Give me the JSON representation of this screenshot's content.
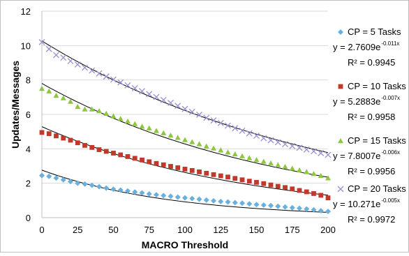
{
  "chart_data": {
    "type": "scatter",
    "xlabel": "MACRO Threshold",
    "ylabel": "Updates/Messages",
    "xlim": [
      0,
      200
    ],
    "ylim": [
      0,
      12
    ],
    "x_ticks": [
      "0",
      "25",
      "50",
      "75",
      "100",
      "125",
      "150",
      "175",
      "200"
    ],
    "y_ticks": [
      "0",
      "2",
      "4",
      "6",
      "8",
      "10",
      "12"
    ],
    "grid": "horizontal",
    "legend_position": "right",
    "x": [
      0,
      5,
      10,
      15,
      20,
      25,
      30,
      35,
      40,
      45,
      50,
      55,
      60,
      65,
      70,
      75,
      80,
      85,
      90,
      95,
      100,
      105,
      110,
      115,
      120,
      125,
      130,
      135,
      140,
      145,
      150,
      155,
      160,
      165,
      170,
      175,
      180,
      185,
      190,
      195,
      200
    ],
    "series": [
      {
        "name": "CP = 5 Tasks",
        "marker": "diamond",
        "color": "#6ab0de",
        "values": [
          2.45,
          2.4,
          2.3,
          2.2,
          2.1,
          2.0,
          1.95,
          1.88,
          1.8,
          1.72,
          1.65,
          1.6,
          1.55,
          1.49,
          1.44,
          1.38,
          1.33,
          1.28,
          1.24,
          1.19,
          1.15,
          1.11,
          1.07,
          1.02,
          0.98,
          0.94,
          0.91,
          0.87,
          0.84,
          0.8,
          0.76,
          0.73,
          0.7,
          0.66,
          0.62,
          0.58,
          0.54,
          0.5,
          0.45,
          0.4,
          0.36
        ],
        "trend": {
          "a": 2.7609,
          "b": -0.011
        },
        "equation": {
          "base": "y = 2.7609e",
          "exp": "-0.011x"
        },
        "r2": "R² = 0.9945"
      },
      {
        "name": "CP = 10 Tasks",
        "marker": "square",
        "color": "#c0392b",
        "values": [
          4.95,
          4.88,
          4.75,
          4.62,
          4.5,
          4.35,
          4.2,
          4.08,
          3.95,
          3.85,
          3.75,
          3.65,
          3.55,
          3.45,
          3.35,
          3.25,
          3.15,
          3.07,
          2.98,
          2.9,
          2.82,
          2.74,
          2.66,
          2.58,
          2.5,
          2.43,
          2.36,
          2.28,
          2.2,
          2.12,
          2.05,
          1.98,
          1.9,
          1.82,
          1.75,
          1.67,
          1.58,
          1.5,
          1.4,
          1.3,
          1.15
        ],
        "trend": {
          "a": 5.2883,
          "b": -0.007
        },
        "equation": {
          "base": "y = 5.2883e",
          "exp": "-0.007x"
        },
        "r2": "R² = 0.9958"
      },
      {
        "name": "CP = 15 Tasks",
        "marker": "triangle",
        "color": "#8dc63f",
        "values": [
          7.5,
          7.35,
          7.1,
          6.95,
          6.75,
          6.45,
          6.3,
          6.3,
          6.2,
          6.05,
          5.9,
          5.75,
          5.6,
          5.45,
          5.3,
          5.2,
          5.05,
          4.92,
          4.78,
          4.65,
          4.52,
          4.4,
          4.28,
          4.15,
          4.03,
          3.92,
          3.8,
          3.69,
          3.58,
          3.47,
          3.36,
          3.26,
          3.16,
          3.06,
          2.96,
          2.86,
          2.76,
          2.66,
          2.55,
          2.44,
          2.3
        ],
        "trend": {
          "a": 7.8007,
          "b": -0.006
        },
        "equation": {
          "base": "y = 7.8007e",
          "exp": "-0.006x"
        },
        "r2": "R² = 0.9956"
      },
      {
        "name": "CP = 20 Tasks",
        "marker": "x",
        "color": "#9b8fd1",
        "values": [
          10.2,
          9.8,
          9.45,
          9.3,
          9.1,
          8.9,
          8.72,
          8.55,
          8.38,
          8.2,
          8.03,
          7.86,
          7.69,
          7.52,
          7.35,
          7.18,
          7.01,
          6.84,
          6.67,
          6.5,
          6.32,
          6.15,
          5.98,
          5.8,
          5.65,
          5.5,
          5.35,
          5.2,
          5.05,
          4.9,
          4.76,
          4.62,
          4.5,
          4.38,
          4.27,
          4.16,
          4.06,
          3.96,
          3.86,
          3.75,
          3.65
        ],
        "trend": {
          "a": 10.271,
          "b": -0.005
        },
        "equation": {
          "base": "y = 10.271e",
          "exp": "-0.005x"
        },
        "r2": "R² = 0.9972"
      }
    ]
  }
}
